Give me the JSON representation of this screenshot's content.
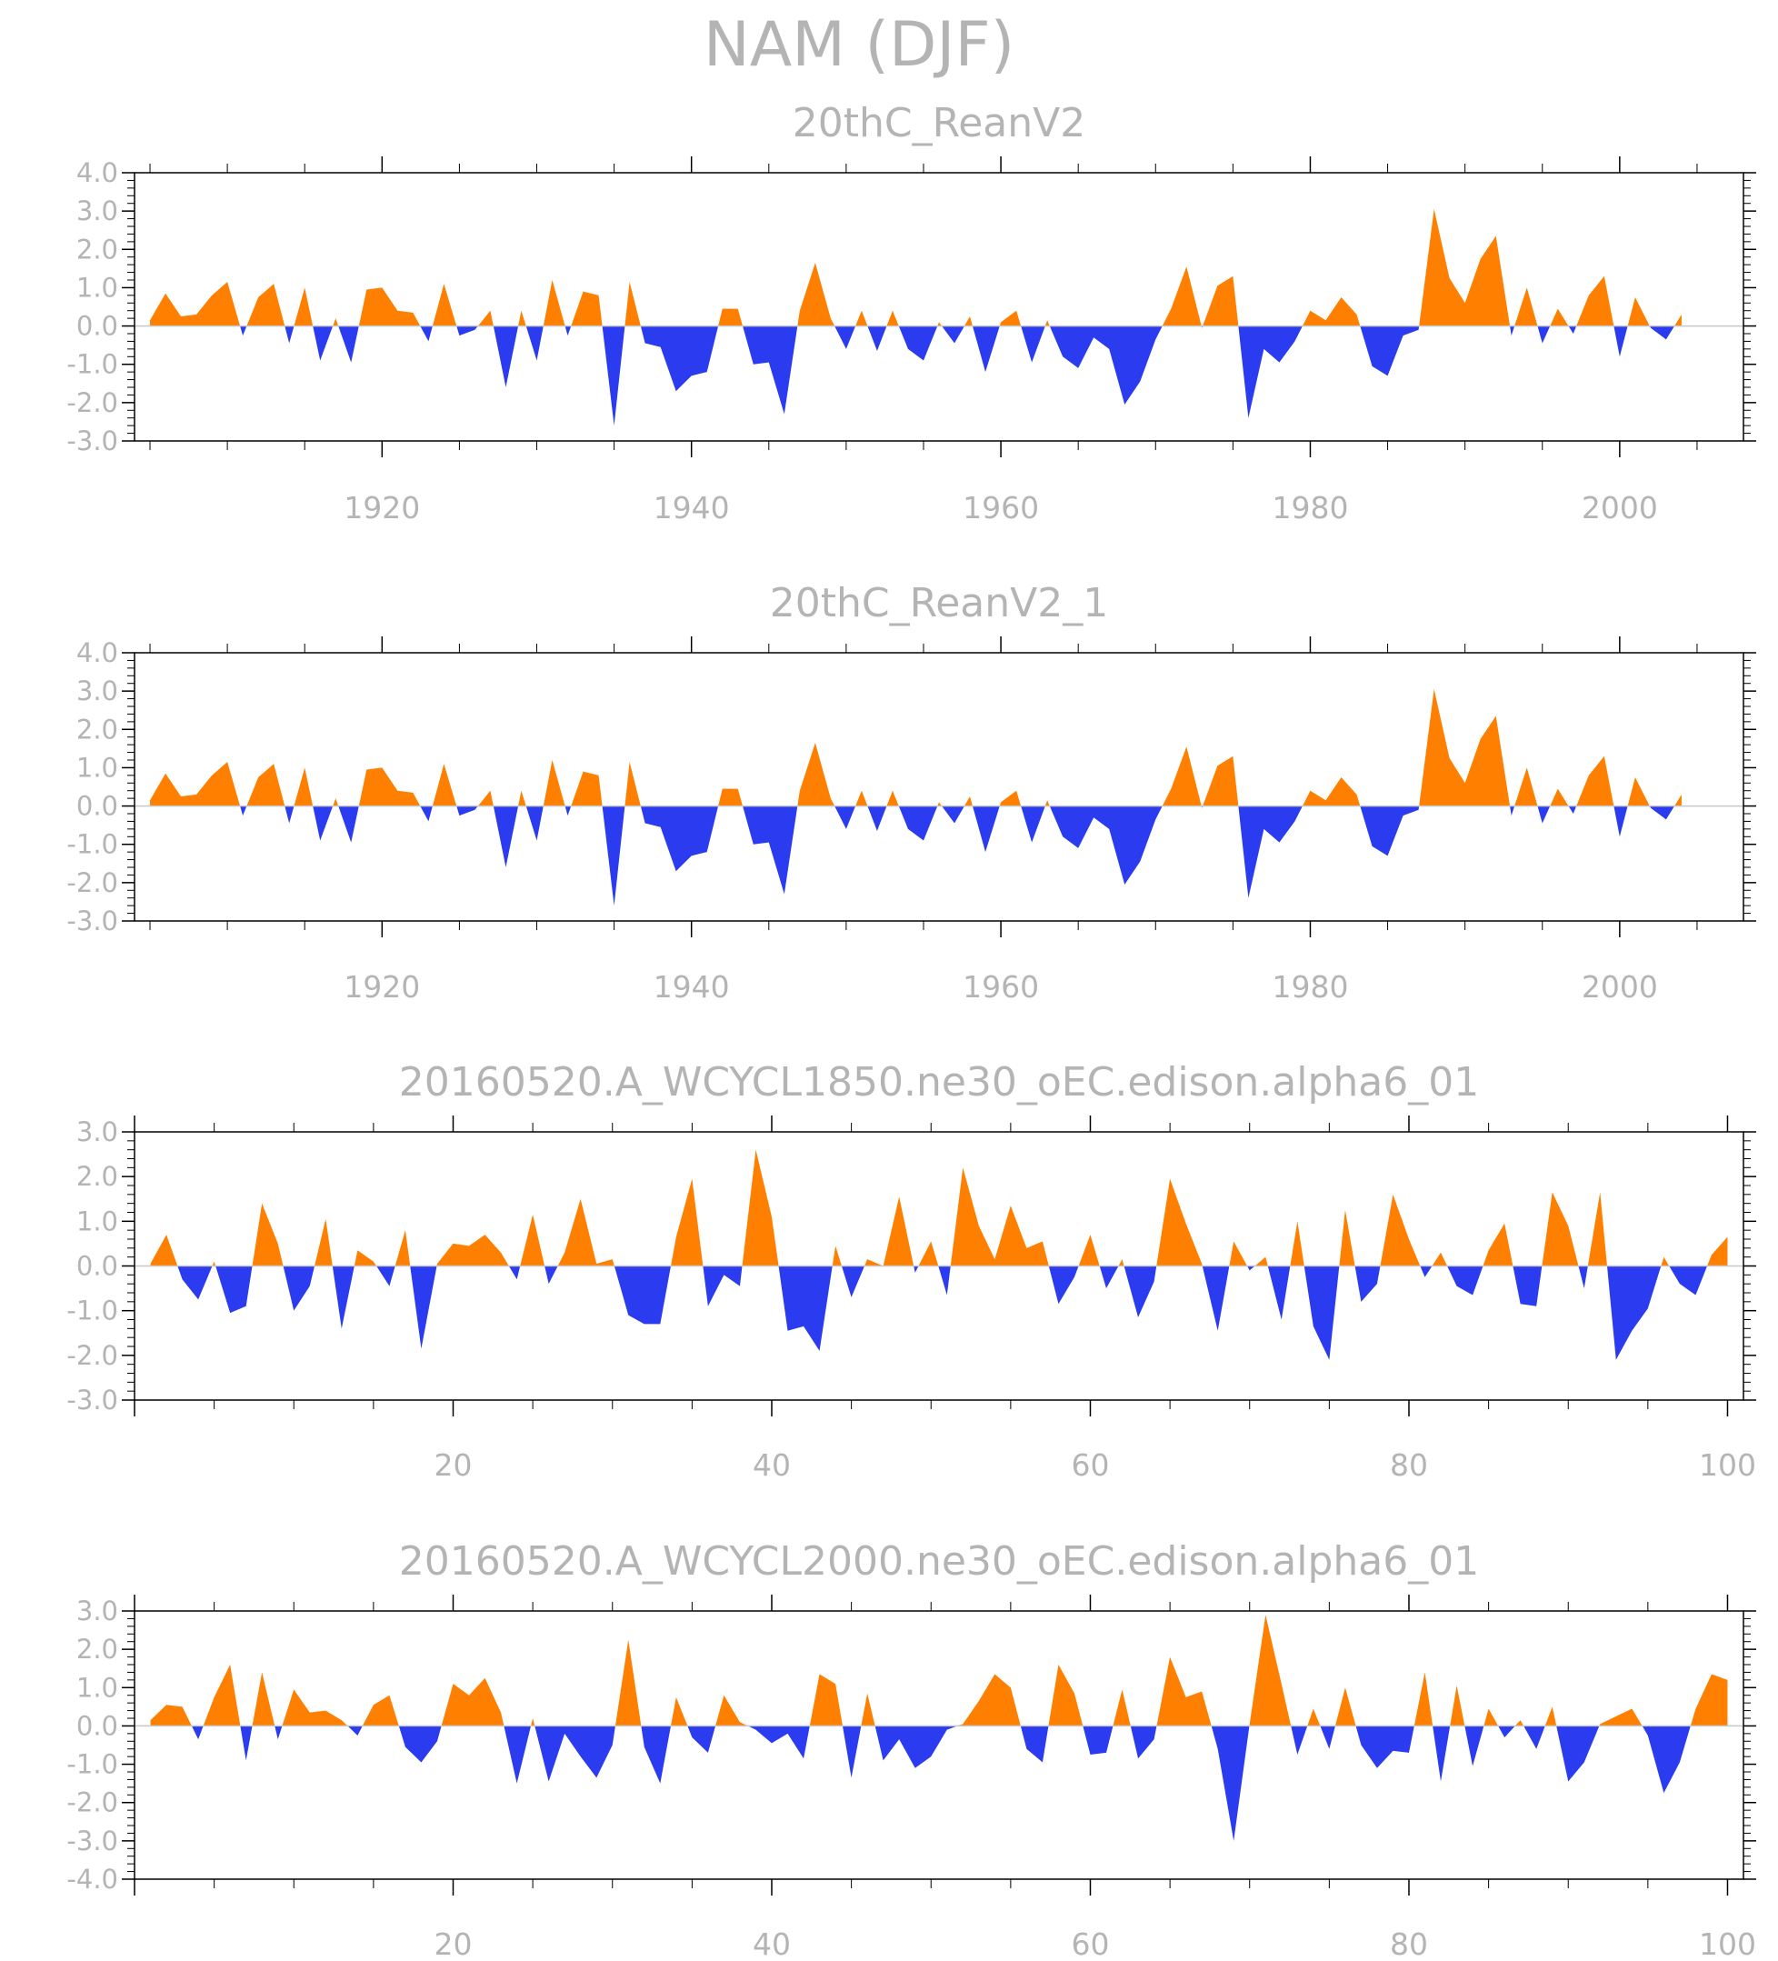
{
  "main_title": "NAM (DJF)",
  "colors": {
    "positive": "#ff8000",
    "negative": "#2a3bf0",
    "frame": "#000000",
    "text": "#b4b4b4"
  },
  "chart_data": [
    {
      "type": "area",
      "title": "20thC_ReanV2",
      "x_start": 1905,
      "x_step": 1,
      "xlim": [
        1904,
        2008
      ],
      "ylim": [
        -3.0,
        4.0
      ],
      "xticks": [
        1920,
        1940,
        1960,
        1980,
        2000
      ],
      "yticks": [
        -3.0,
        -2.0,
        -1.0,
        0.0,
        1.0,
        2.0,
        3.0,
        4.0
      ],
      "tick_labels_y": [
        "-3.0",
        "-2.0",
        "-1.0",
        "0.0",
        "1.0",
        "2.0",
        "3.0",
        "4.0"
      ],
      "tick_labels_x": [
        "1920",
        "1940",
        "1960",
        "1980",
        "2000"
      ],
      "positive_color": "#ff8000",
      "negative_color": "#2a3bf0",
      "values": [
        0.15,
        0.85,
        0.25,
        0.3,
        0.8,
        1.15,
        -0.25,
        0.75,
        1.1,
        -0.45,
        1.0,
        -0.9,
        0.2,
        -0.95,
        0.95,
        1.0,
        0.4,
        0.35,
        -0.4,
        1.1,
        -0.25,
        -0.1,
        0.4,
        -1.6,
        0.4,
        -0.9,
        1.2,
        -0.25,
        0.9,
        0.8,
        -2.6,
        1.15,
        -0.45,
        -0.55,
        -1.7,
        -1.3,
        -1.2,
        0.45,
        0.45,
        -1.0,
        -0.95,
        -2.3,
        0.4,
        1.65,
        0.2,
        -0.6,
        0.4,
        -0.65,
        0.4,
        -0.6,
        -0.9,
        0.1,
        -0.45,
        0.25,
        -1.2,
        0.1,
        0.4,
        -0.95,
        0.15,
        -0.8,
        -1.1,
        -0.3,
        -0.6,
        -2.05,
        -1.45,
        -0.35,
        0.45,
        1.55,
        -0.05,
        1.05,
        1.3,
        -2.4,
        -0.6,
        -0.95,
        -0.4,
        0.4,
        0.15,
        0.75,
        0.3,
        -1.05,
        -1.3,
        -0.25,
        -0.1,
        3.05,
        1.25,
        0.6,
        1.75,
        2.35,
        -0.25,
        1.0,
        -0.45,
        0.45,
        -0.2,
        0.8,
        1.3,
        -0.8,
        0.75,
        -0.05,
        -0.35,
        0.3
      ]
    },
    {
      "type": "area",
      "title": "20thC_ReanV2_1",
      "x_start": 1905,
      "x_step": 1,
      "xlim": [
        1904,
        2008
      ],
      "ylim": [
        -3.0,
        4.0
      ],
      "xticks": [
        1920,
        1940,
        1960,
        1980,
        2000
      ],
      "yticks": [
        -3.0,
        -2.0,
        -1.0,
        0.0,
        1.0,
        2.0,
        3.0,
        4.0
      ],
      "tick_labels_y": [
        "-3.0",
        "-2.0",
        "-1.0",
        "0.0",
        "1.0",
        "2.0",
        "3.0",
        "4.0"
      ],
      "tick_labels_x": [
        "1920",
        "1940",
        "1960",
        "1980",
        "2000"
      ],
      "positive_color": "#ff8000",
      "negative_color": "#2a3bf0",
      "values": [
        0.15,
        0.85,
        0.25,
        0.3,
        0.8,
        1.15,
        -0.25,
        0.75,
        1.1,
        -0.45,
        1.0,
        -0.9,
        0.2,
        -0.95,
        0.95,
        1.0,
        0.4,
        0.35,
        -0.4,
        1.1,
        -0.25,
        -0.1,
        0.4,
        -1.6,
        0.4,
        -0.9,
        1.2,
        -0.25,
        0.9,
        0.8,
        -2.6,
        1.15,
        -0.45,
        -0.55,
        -1.7,
        -1.3,
        -1.2,
        0.45,
        0.45,
        -1.0,
        -0.95,
        -2.3,
        0.4,
        1.65,
        0.2,
        -0.6,
        0.4,
        -0.65,
        0.4,
        -0.6,
        -0.9,
        0.1,
        -0.45,
        0.25,
        -1.2,
        0.1,
        0.4,
        -0.95,
        0.15,
        -0.8,
        -1.1,
        -0.3,
        -0.6,
        -2.05,
        -1.45,
        -0.35,
        0.45,
        1.55,
        -0.05,
        1.05,
        1.3,
        -2.4,
        -0.6,
        -0.95,
        -0.4,
        0.4,
        0.15,
        0.75,
        0.3,
        -1.05,
        -1.3,
        -0.25,
        -0.1,
        3.05,
        1.25,
        0.6,
        1.75,
        2.35,
        -0.25,
        1.0,
        -0.45,
        0.45,
        -0.2,
        0.8,
        1.3,
        -0.8,
        0.75,
        -0.05,
        -0.35,
        0.3
      ]
    },
    {
      "type": "area",
      "title": "20160520.A_WCYCL1850.ne30_oEC.edison.alpha6_01",
      "x_start": 1,
      "x_step": 1,
      "xlim": [
        0,
        101
      ],
      "ylim": [
        -3.0,
        3.0
      ],
      "xticks": [
        20,
        40,
        60,
        80,
        100
      ],
      "yticks": [
        -3.0,
        -2.0,
        -1.0,
        0.0,
        1.0,
        2.0,
        3.0
      ],
      "tick_labels_y": [
        "-3.0",
        "-2.0",
        "-1.0",
        "0.0",
        "1.0",
        "2.0",
        "3.0"
      ],
      "tick_labels_x": [
        "20",
        "40",
        "60",
        "80",
        "100"
      ],
      "positive_color": "#ff8000",
      "negative_color": "#2a3bf0",
      "values": [
        0.05,
        0.7,
        -0.3,
        -0.75,
        0.1,
        -1.05,
        -0.9,
        1.4,
        0.5,
        -1.0,
        -0.45,
        1.05,
        -1.4,
        0.35,
        0.1,
        -0.45,
        0.8,
        -1.85,
        0.05,
        0.5,
        0.45,
        0.7,
        0.3,
        -0.3,
        1.15,
        -0.4,
        0.3,
        1.5,
        0.05,
        0.15,
        -1.1,
        -1.3,
        -1.3,
        0.65,
        1.95,
        -0.9,
        -0.2,
        -0.45,
        2.6,
        1.1,
        -1.45,
        -1.35,
        -1.9,
        0.45,
        -0.7,
        0.15,
        0.0,
        1.55,
        -0.15,
        0.55,
        -0.65,
        2.2,
        0.9,
        0.15,
        1.35,
        0.4,
        0.55,
        -0.85,
        -0.25,
        0.7,
        -0.5,
        0.15,
        -1.15,
        -0.35,
        1.95,
        0.95,
        0.05,
        -1.45,
        0.55,
        -0.1,
        0.2,
        -1.2,
        1.0,
        -1.35,
        -2.1,
        1.25,
        -0.8,
        -0.4,
        1.6,
        0.6,
        -0.25,
        0.3,
        -0.45,
        -0.65,
        0.35,
        0.95,
        -0.85,
        -0.9,
        1.65,
        0.9,
        -0.5,
        1.65,
        -2.1,
        -1.45,
        -0.95,
        0.2,
        -0.4,
        -0.65,
        0.25,
        0.65
      ]
    },
    {
      "type": "area",
      "title": "20160520.A_WCYCL2000.ne30_oEC.edison.alpha6_01",
      "x_start": 1,
      "x_step": 1,
      "xlim": [
        0,
        101
      ],
      "ylim": [
        -4.0,
        3.0
      ],
      "xticks": [
        20,
        40,
        60,
        80,
        100
      ],
      "yticks": [
        -4.0,
        -3.0,
        -2.0,
        -1.0,
        0.0,
        1.0,
        2.0,
        3.0
      ],
      "tick_labels_y": [
        "-4.0",
        "-3.0",
        "-2.0",
        "-1.0",
        "0.0",
        "1.0",
        "2.0",
        "3.0"
      ],
      "tick_labels_x": [
        "20",
        "40",
        "60",
        "80",
        "100"
      ],
      "positive_color": "#ff8000",
      "negative_color": "#2a3bf0",
      "values": [
        0.15,
        0.55,
        0.5,
        -0.35,
        0.75,
        1.6,
        -0.9,
        1.4,
        -0.35,
        0.95,
        0.35,
        0.4,
        0.15,
        -0.25,
        0.55,
        0.8,
        -0.55,
        -0.95,
        -0.4,
        1.1,
        0.8,
        1.25,
        0.35,
        -1.5,
        0.2,
        -1.45,
        -0.2,
        -0.8,
        -1.35,
        -0.5,
        2.25,
        -0.55,
        -1.5,
        0.75,
        -0.3,
        -0.7,
        0.8,
        0.1,
        -0.1,
        -0.45,
        -0.2,
        -0.85,
        1.35,
        1.1,
        -1.35,
        0.85,
        -0.9,
        -0.35,
        -1.1,
        -0.8,
        -0.1,
        0.05,
        0.65,
        1.35,
        1.0,
        -0.6,
        -0.95,
        1.6,
        0.85,
        -0.75,
        -0.7,
        0.95,
        -0.85,
        -0.35,
        1.8,
        0.75,
        0.9,
        -0.6,
        -3.0,
        0.05,
        2.9,
        1.1,
        -0.75,
        0.45,
        -0.6,
        1.0,
        -0.5,
        -1.1,
        -0.65,
        -0.7,
        1.4,
        -1.45,
        1.05,
        -1.05,
        0.45,
        -0.3,
        0.15,
        -0.6,
        0.5,
        -1.45,
        -0.95,
        0.05,
        0.25,
        0.45,
        -0.25,
        -1.75,
        -0.95,
        0.45,
        1.35,
        1.2
      ]
    }
  ]
}
